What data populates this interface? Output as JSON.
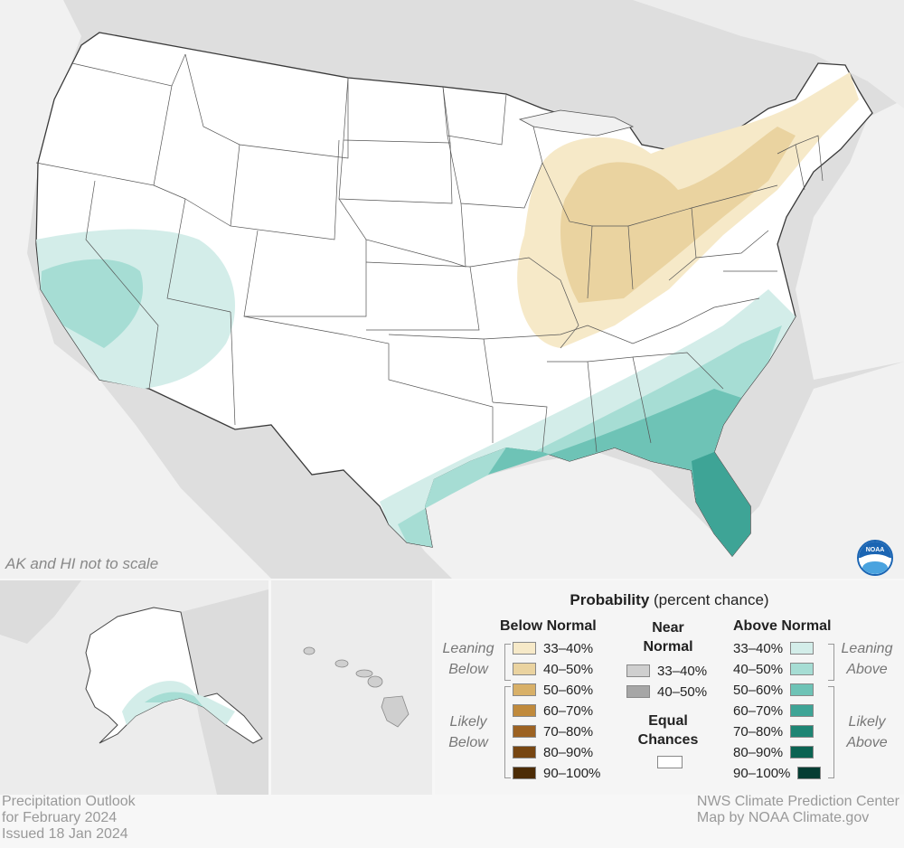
{
  "map_note": "AK and HI not to scale",
  "footer_left": [
    "Precipitation Outlook",
    "for February 2024",
    "Issued 18 Jan 2024"
  ],
  "footer_right": [
    "NWS Climate Prediction Center",
    "Map by NOAA Climate.gov"
  ],
  "logo_text": "NOAA",
  "legend": {
    "title_bold": "Probability",
    "title_rest": " (percent chance)",
    "below": {
      "heading": "Below Normal",
      "leaning_label": [
        "Leaning",
        "Below"
      ],
      "likely_label": [
        "Likely",
        "Below"
      ],
      "items": [
        {
          "range": "33–40%",
          "color": "#f6e9c8"
        },
        {
          "range": "40–50%",
          "color": "#ead3a0"
        },
        {
          "range": "50–60%",
          "color": "#d8b068"
        },
        {
          "range": "60–70%",
          "color": "#c08a3c"
        },
        {
          "range": "70–80%",
          "color": "#9c6222"
        },
        {
          "range": "80–90%",
          "color": "#774612"
        },
        {
          "range": "90–100%",
          "color": "#4c2c06"
        }
      ]
    },
    "near": {
      "heading": [
        "Near",
        "Normal"
      ],
      "items": [
        {
          "range": "33–40%",
          "color": "#cfcfcf"
        },
        {
          "range": "40–50%",
          "color": "#a6a6a6"
        }
      ]
    },
    "equal": {
      "heading": [
        "Equal",
        "Chances"
      ],
      "color": "#ffffff"
    },
    "above": {
      "heading": "Above Normal",
      "leaning_label": [
        "Leaning",
        "Above"
      ],
      "likely_label": [
        "Likely",
        "Above"
      ],
      "items": [
        {
          "range": "33–40%",
          "color": "#d3ede9"
        },
        {
          "range": "40–50%",
          "color": "#a6ddd4"
        },
        {
          "range": "50–60%",
          "color": "#6ec3b6"
        },
        {
          "range": "60–70%",
          "color": "#3ea496"
        },
        {
          "range": "70–80%",
          "color": "#1e8574"
        },
        {
          "range": "80–90%",
          "color": "#0b6352"
        },
        {
          "range": "90–100%",
          "color": "#053d33"
        }
      ]
    }
  },
  "colors": {
    "background_land": "#e2e2e2",
    "water": "#f2f2f2",
    "noaa_blue": "#1b65b3"
  }
}
